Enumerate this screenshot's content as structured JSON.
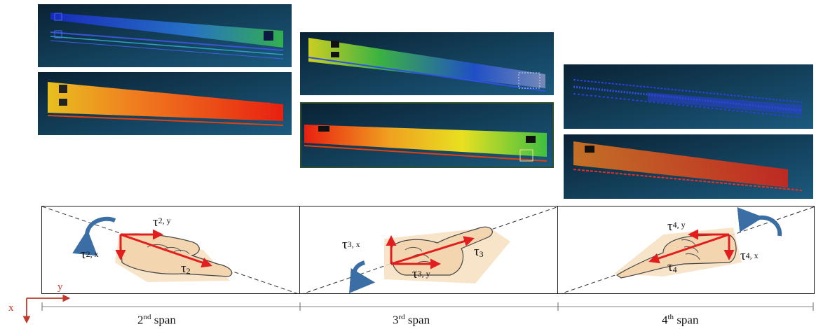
{
  "point_clouds": {
    "span2_top": "blue-green point cloud",
    "span2_bottom": "red-orange point cloud",
    "span3_top": "yellow-green-blue point cloud",
    "span3_bottom": "red-yellow-green point cloud",
    "span4_top": "blue point cloud",
    "span4_bottom": "red point cloud"
  },
  "panels": {
    "span2": {
      "tau_y": "τ",
      "tau_y_sub": "2, y",
      "tau_x": "τ",
      "tau_x_sub": "2, x",
      "tau": "τ",
      "tau_sub": "2"
    },
    "span3": {
      "tau_x": "τ",
      "tau_x_sub": "3, x",
      "tau_y": "τ",
      "tau_y_sub": "3, y",
      "tau": "τ",
      "tau_sub": "3"
    },
    "span4": {
      "tau_y": "τ",
      "tau_y_sub": "4, y",
      "tau_x": "τ",
      "tau_x_sub": "4, x",
      "tau": "τ",
      "tau_sub": "4"
    }
  },
  "axes": {
    "x": "x",
    "y": "y"
  },
  "span_labels": {
    "span2": {
      "num": "2",
      "sup": "nd",
      "text": " span"
    },
    "span3": {
      "num": "3",
      "sup": "rd",
      "text": " span"
    },
    "span4": {
      "num": "4",
      "sup": "th",
      "text": " span"
    }
  },
  "colors": {
    "arrow": "#e11d1d",
    "rotation": "#3a6ea5",
    "hand": "#f7dfc0",
    "background": "#0e2f46"
  }
}
